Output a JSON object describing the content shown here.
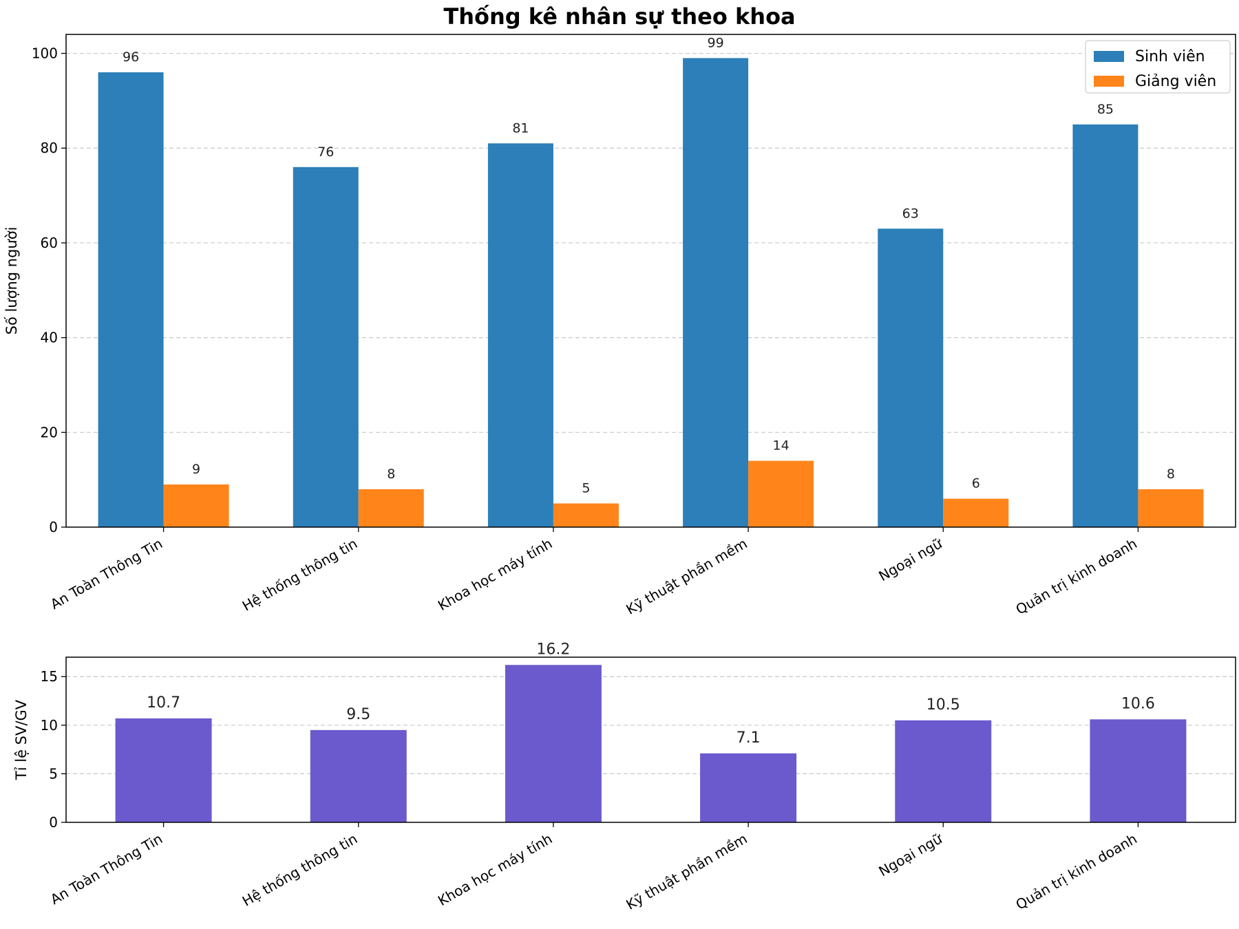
{
  "title": "Thống kê nhân sự theo khoa",
  "chart_data": [
    {
      "type": "bar",
      "categories": [
        "An Toàn Thông Tin",
        "Hệ thống thông tin",
        "Khoa học máy tính",
        "Kỹ thuật phần mềm",
        "Ngoại ngữ",
        "Quản trị kinh doanh"
      ],
      "series": [
        {
          "name": "Sinh viên",
          "values": [
            96,
            76,
            81,
            99,
            63,
            85
          ],
          "color": "#2c7fb8"
        },
        {
          "name": "Giảng viên",
          "values": [
            9,
            8,
            5,
            14,
            6,
            8
          ],
          "color": "#ff851b"
        }
      ],
      "title": "Thống kê nhân sự theo khoa",
      "ylabel": "Số lượng người",
      "ylim": [
        0,
        104
      ],
      "yticks": [
        0,
        20,
        40,
        60,
        80,
        100
      ],
      "grid": "y-dashed",
      "legend": "top-right"
    },
    {
      "type": "bar",
      "categories": [
        "An Toàn Thông Tin",
        "Hệ thống thông tin",
        "Khoa học máy tính",
        "Kỹ thuật phần mềm",
        "Ngoại ngữ",
        "Quản trị kinh doanh"
      ],
      "series": [
        {
          "values": [
            10.7,
            9.5,
            16.2,
            7.1,
            10.5,
            10.6
          ],
          "color": "#6a5acd"
        }
      ],
      "ylabel": "Tỉ lệ SV/GV",
      "ylim": [
        0,
        17
      ],
      "yticks": [
        0,
        5,
        10,
        15
      ],
      "grid": "y-dashed"
    }
  ]
}
